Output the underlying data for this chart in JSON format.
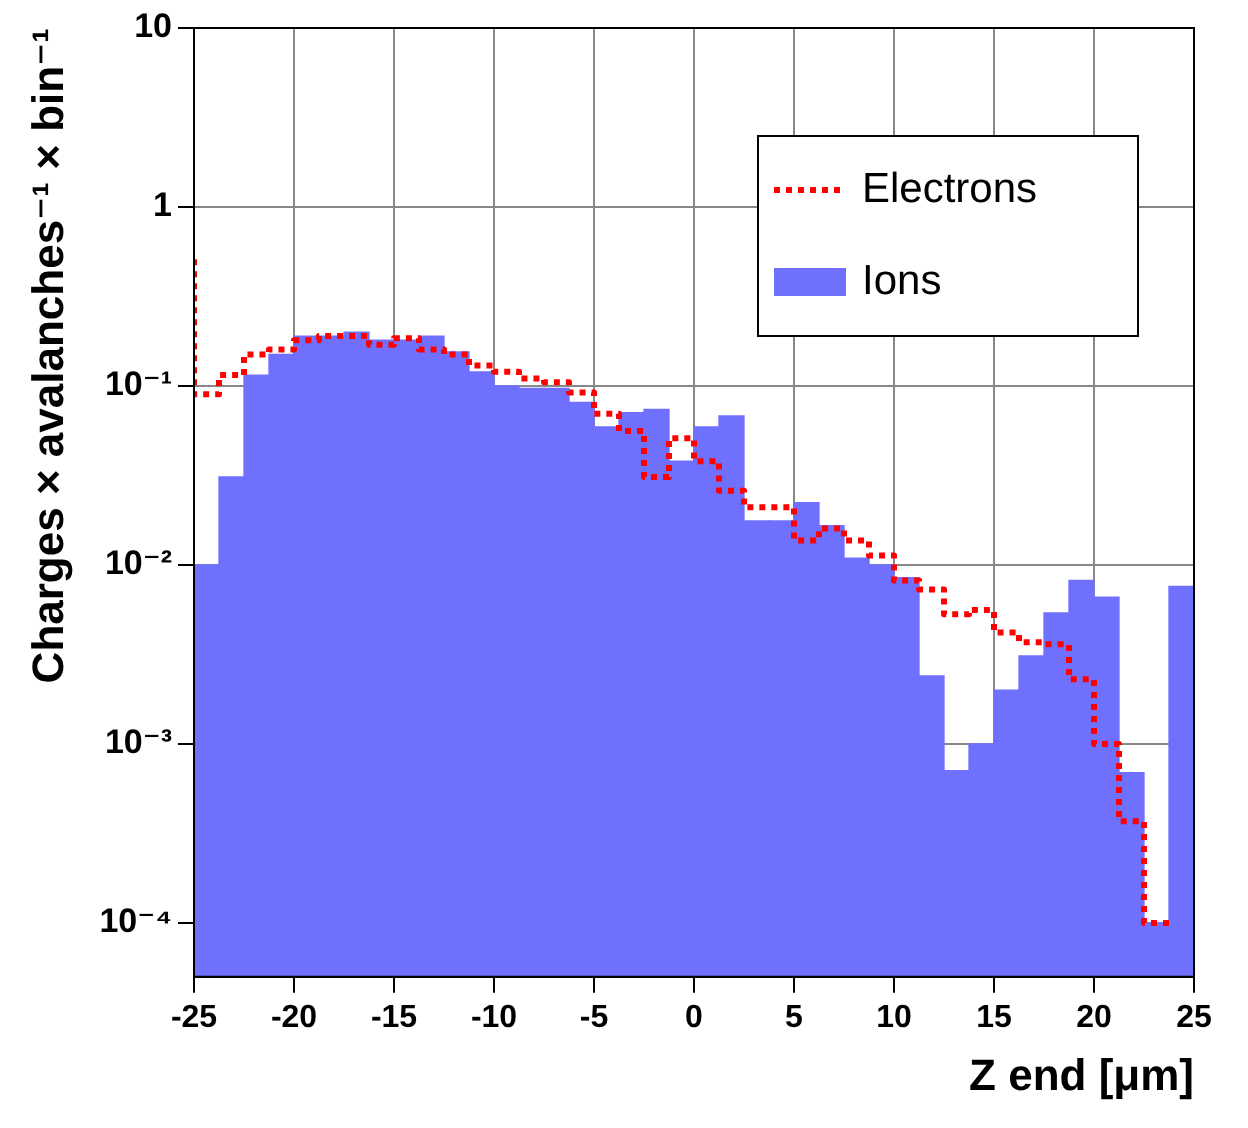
{
  "chart_data": {
    "type": "histogram",
    "xlabel": "Z end [μm]",
    "ylabel": "Charges × avalanches⁻¹ × bin⁻¹",
    "bins": [
      -25,
      -23.75,
      -22.5,
      -21.25,
      -20,
      -18.75,
      -17.5,
      -16.25,
      -15,
      -13.75,
      -12.5,
      -11.25,
      -10,
      -8.75,
      -7.5,
      -6.25,
      -5,
      -3.75,
      -2.5,
      -1.25,
      0,
      1.25,
      2.5,
      3.75,
      5,
      6.25,
      7.5,
      8.75,
      10,
      11.25,
      12.5,
      13.75,
      15,
      16.25,
      17.5,
      18.75,
      20,
      21.25,
      22.5,
      23.75,
      25
    ],
    "series": [
      {
        "name": "Electrons",
        "type": "step",
        "color": "#ff0000",
        "line_style": "dotted",
        "x": [
          -25,
          -23.75,
          -22.5,
          -21.25,
          -20,
          -18.75,
          -17.5,
          -16.25,
          -15,
          -13.75,
          -12.5,
          -11.25,
          -10,
          -8.75,
          -7.5,
          -6.25,
          -5,
          -3.75,
          -2.5,
          -1.25,
          0,
          1.25,
          2.5,
          3.75,
          5,
          6.25,
          7.5,
          8.75,
          10,
          11.25,
          12.5,
          13.75,
          15,
          16.25,
          17.5,
          18.75,
          20,
          21.25,
          22.5,
          23.75
        ],
        "values": [
          0.51,
          0.09,
          0.115,
          0.15,
          0.16,
          0.18,
          0.19,
          0.19,
          0.17,
          0.185,
          0.16,
          0.15,
          0.13,
          0.12,
          0.11,
          0.105,
          0.092,
          0.07,
          0.056,
          0.031,
          0.051,
          0.038,
          0.026,
          0.021,
          0.021,
          0.0137,
          0.016,
          0.0137,
          0.0113,
          0.0082,
          0.0073,
          0.0053,
          0.0056,
          0.0042,
          0.0037,
          0.0036,
          0.0023,
          0.001,
          0.00037,
          0.0001
        ]
      },
      {
        "name": "Ions",
        "color": "#7070ff",
        "values": [
          0.01,
          0.031,
          0.115,
          0.15,
          0.19,
          0.19,
          0.2,
          0.18,
          0.18,
          0.19,
          0.155,
          0.12,
          0.1,
          0.097,
          0.097,
          0.081,
          0.059,
          0.071,
          0.074,
          0.038,
          0.059,
          0.068,
          0.0176,
          0.0176,
          0.0223,
          0.0166,
          0.0109,
          0.01,
          0.0085,
          0.0024,
          0.00071,
          0.001,
          0.002,
          0.0031,
          0.0054,
          0.0082,
          0.0066,
          0.00069,
          0.0001,
          0.0076
        ]
      }
    ],
    "xlim": [
      -25,
      25
    ],
    "xticks": [
      -25,
      -20,
      -15,
      -10,
      -5,
      0,
      5,
      10,
      15,
      20,
      25
    ],
    "ylim": [
      5e-05,
      10
    ],
    "yticks": [
      {
        "value": 0.0001,
        "label": "10⁻⁴"
      },
      {
        "value": 0.001,
        "label": "10⁻³"
      },
      {
        "value": 0.01,
        "label": "10⁻²"
      },
      {
        "value": 0.1,
        "label": "10⁻¹"
      },
      1,
      10
    ],
    "log": "y",
    "grid": true,
    "legend": "top right"
  }
}
